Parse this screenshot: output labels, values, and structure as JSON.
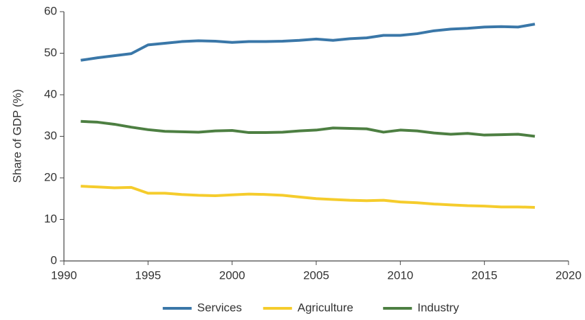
{
  "chart_data": {
    "type": "line",
    "ylabel": "Share of GDP (%)",
    "x": [
      1991,
      1992,
      1993,
      1994,
      1995,
      1996,
      1997,
      1998,
      1999,
      2000,
      2001,
      2002,
      2003,
      2004,
      2005,
      2006,
      2007,
      2008,
      2009,
      2010,
      2011,
      2012,
      2013,
      2014,
      2015,
      2016,
      2017,
      2018
    ],
    "series": [
      {
        "name": "Services",
        "color": "#3a77a8",
        "values": [
          48.3,
          48.9,
          49.4,
          49.9,
          52.0,
          52.4,
          52.8,
          53.0,
          52.9,
          52.6,
          52.8,
          52.8,
          52.9,
          53.1,
          53.4,
          53.1,
          53.5,
          53.7,
          54.3,
          54.3,
          54.7,
          55.4,
          55.8,
          56.0,
          56.3,
          56.4,
          56.3,
          57.0
        ]
      },
      {
        "name": "Agriculture",
        "color": "#f5cc2c",
        "values": [
          18.0,
          17.8,
          17.6,
          17.7,
          16.3,
          16.3,
          16.0,
          15.8,
          15.7,
          15.9,
          16.1,
          16.0,
          15.8,
          15.4,
          15.0,
          14.8,
          14.6,
          14.5,
          14.6,
          14.2,
          14.0,
          13.7,
          13.5,
          13.3,
          13.2,
          13.0,
          13.0,
          12.9
        ]
      },
      {
        "name": "Industry",
        "color": "#4d7f42",
        "values": [
          33.6,
          33.4,
          32.9,
          32.2,
          31.6,
          31.2,
          31.1,
          31.0,
          31.3,
          31.4,
          30.9,
          30.9,
          31.0,
          31.3,
          31.5,
          32.0,
          31.9,
          31.8,
          31.0,
          31.5,
          31.3,
          30.8,
          30.5,
          30.7,
          30.3,
          30.4,
          30.5,
          30.0
        ]
      }
    ],
    "xlim": [
      1990,
      2020
    ],
    "xticks": [
      1990,
      1995,
      2000,
      2005,
      2010,
      2015,
      2020
    ],
    "ylim": [
      0,
      60
    ],
    "yticks": [
      0,
      10,
      20,
      30,
      40,
      50,
      60
    ],
    "grid": false,
    "legend": "bottom"
  }
}
